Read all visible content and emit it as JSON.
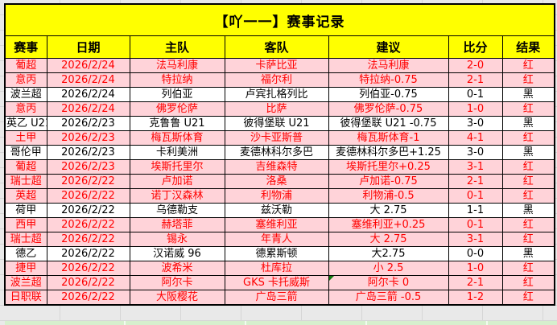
{
  "app": {
    "title": "【吖一一】赛事记录"
  },
  "table": {
    "columns": [
      "赛事",
      "日期",
      "主队",
      "客队",
      "建议",
      "比分",
      "结果"
    ],
    "rows": [
      {
        "league": "葡超",
        "date": "2026/2/24",
        "home": "法马利康",
        "away": "卡萨比亚",
        "tip": "法马利康",
        "score": "2-0",
        "result": "红",
        "hit": true,
        "note_marker": false
      },
      {
        "league": "意丙",
        "date": "2026/2/24",
        "home": "特拉纳",
        "away": "福尔利",
        "tip": "特拉纳-0.75",
        "score": "2-1",
        "result": "红",
        "hit": true,
        "note_marker": false
      },
      {
        "league": "波兰超",
        "date": "2026/2/24",
        "home": "列伯亚",
        "away": "卢宾扎格列比",
        "tip": "列伯亚-0.75",
        "score": "0-1",
        "result": "黑",
        "hit": false,
        "note_marker": false
      },
      {
        "league": "意丙",
        "date": "2026/2/24",
        "home": "佛罗伦萨",
        "away": "比萨",
        "tip": "佛罗伦萨-0.75",
        "score": "1-0",
        "result": "红",
        "hit": true,
        "note_marker": false
      },
      {
        "league": "英乙 U21",
        "date": "2026/2/23",
        "home": "克鲁鲁 U21",
        "away": "彼得堡联 U21",
        "tip": "彼得堡联 U21 -0.75",
        "score": "3-0",
        "result": "黑",
        "hit": false,
        "note_marker": false
      },
      {
        "league": "土甲",
        "date": "2026/2/23",
        "home": "梅瓦斯体育",
        "away": "沙卡亚斯普",
        "tip": "梅瓦斯体育-1",
        "score": "4-1",
        "result": "红",
        "hit": true,
        "note_marker": false
      },
      {
        "league": "哥伦甲",
        "date": "2026/2/23",
        "home": "卡利美洲",
        "away": "麦德林科尔多巴",
        "tip": "麦德林科尔多巴+1.25",
        "score": "3-0",
        "result": "黑",
        "hit": false,
        "note_marker": false
      },
      {
        "league": "葡超",
        "date": "2026/2/23",
        "home": "埃斯托里尔",
        "away": "吉维森特",
        "tip": "埃斯托里尔+0.25",
        "score": "3-1",
        "result": "红",
        "hit": true,
        "note_marker": false
      },
      {
        "league": "瑞士超",
        "date": "2026/2/22",
        "home": "卢加诺",
        "away": "洛桑",
        "tip": "卢加诺-0.75",
        "score": "2-1",
        "result": "红",
        "hit": true,
        "note_marker": false
      },
      {
        "league": "英超",
        "date": "2026/2/22",
        "home": "诺丁汉森林",
        "away": "利物浦",
        "tip": "利物浦-0.5",
        "score": "0-1",
        "result": "红",
        "hit": true,
        "note_marker": false
      },
      {
        "league": "荷甲",
        "date": "2026/2/22",
        "home": "乌德勒支",
        "away": "兹沃勒",
        "tip": "大 2.75",
        "score": "1-1",
        "result": "黑",
        "hit": false,
        "note_marker": false
      },
      {
        "league": "西甲",
        "date": "2026/2/22",
        "home": "赫塔菲",
        "away": "塞维利亚",
        "tip": "塞维利亚+0.25",
        "score": "0-1",
        "result": "红",
        "hit": true,
        "note_marker": false
      },
      {
        "league": "瑞士超",
        "date": "2026/2/22",
        "home": "锡永",
        "away": "年青人",
        "tip": "大 2.75",
        "score": "3-1",
        "result": "红",
        "hit": true,
        "note_marker": false
      },
      {
        "league": "德乙",
        "date": "2026/2/22",
        "home": "汉诺威 96",
        "away": "德累斯顿",
        "tip": "大2.75",
        "score": "0-0",
        "result": "黑",
        "hit": false,
        "note_marker": false
      },
      {
        "league": "捷甲",
        "date": "2026/2/22",
        "home": "波希米",
        "away": "杜库拉",
        "tip": "小 2.5",
        "score": "1-0",
        "result": "红",
        "hit": true,
        "note_marker": false
      },
      {
        "league": "波兰超",
        "date": "2026/2/22",
        "home": "阿尔卡",
        "away": "GKS 卡托威斯",
        "tip": "阿尔卡 0",
        "score": "2-1",
        "result": "红",
        "hit": true,
        "note_marker": true
      },
      {
        "league": "日职联",
        "date": "2026/2/22",
        "home": "大阪樱花",
        "away": "广岛三箭",
        "tip": "广岛三箭 -0.5",
        "score": "1-2",
        "result": "红",
        "hit": true,
        "note_marker": false
      }
    ]
  },
  "colors": {
    "header_bg": "#ffff00",
    "hit_bg": "#ffd3d9",
    "hit_text": "#ff0000",
    "miss_bg": "#ffffff",
    "miss_text": "#000000",
    "border": "#000000",
    "canvas_bg": "#e9e9e9",
    "next_section_bg": "#d6efcd",
    "note_marker": "#107c10"
  }
}
